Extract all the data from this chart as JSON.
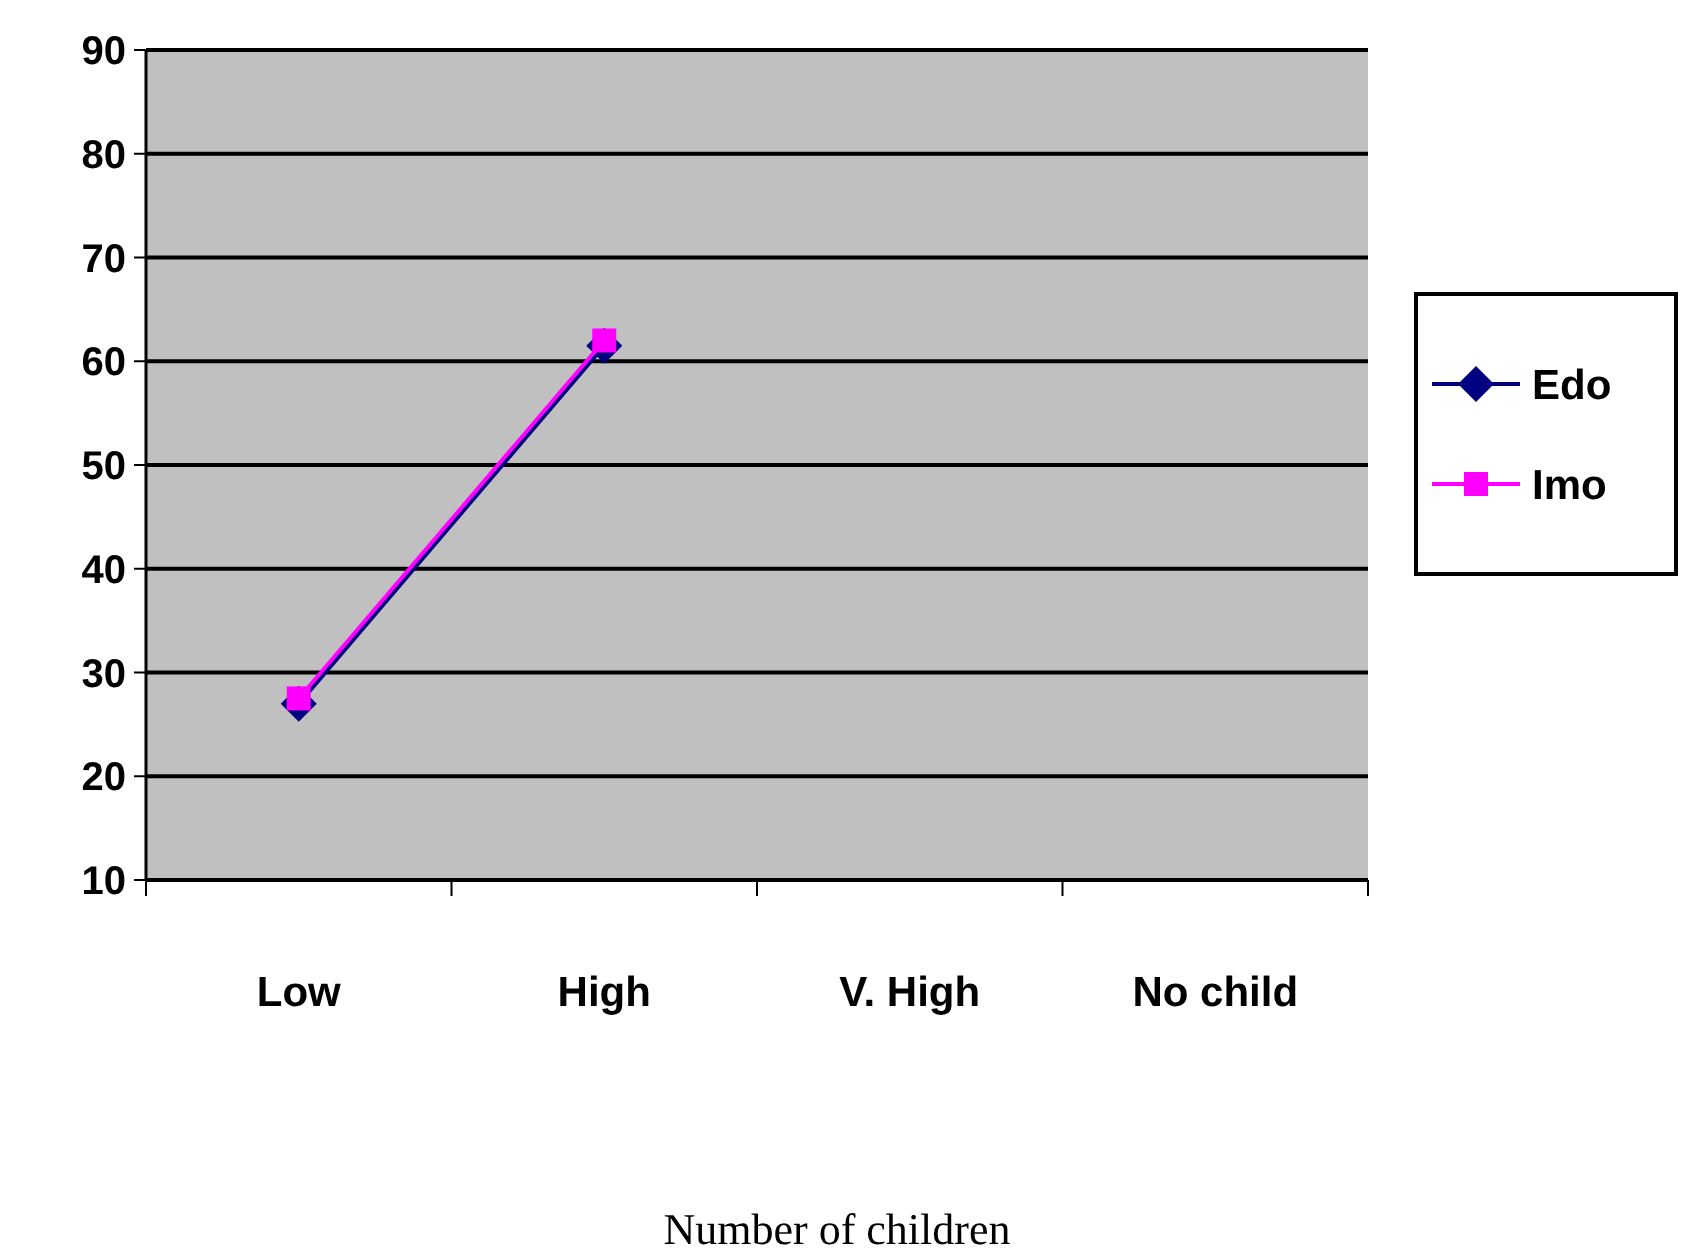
{
  "chart_data": {
    "type": "line",
    "xlabel": "Number of children",
    "categories": [
      "Low",
      "High",
      "V. High",
      "No child"
    ],
    "series": [
      {
        "name": "Edo",
        "color": "#000080",
        "values": [
          27,
          61.5,
          null,
          null
        ],
        "marker": "diamond"
      },
      {
        "name": "Imo",
        "color": "#ff00ff",
        "values": [
          27.5,
          62,
          null,
          null
        ],
        "marker": "square"
      }
    ],
    "ylim": [
      10,
      90
    ],
    "yticks": [
      10,
      20,
      30,
      40,
      50,
      60,
      70,
      80,
      90
    ],
    "grid": "y",
    "legend": "right"
  }
}
